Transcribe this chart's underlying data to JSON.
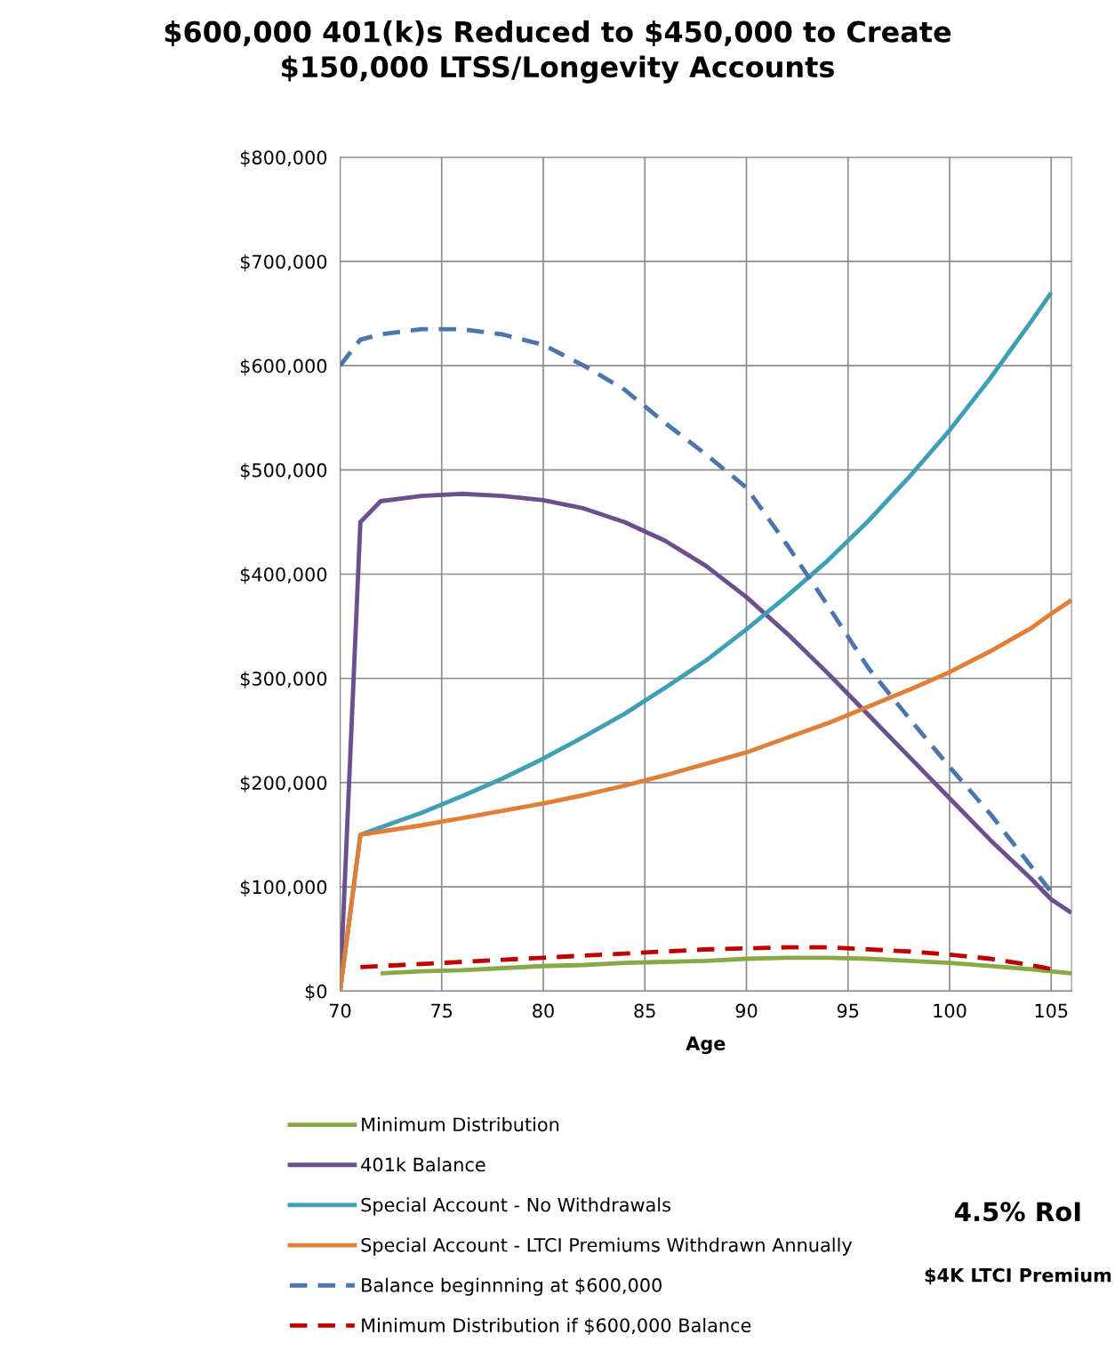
{
  "chart_data": {
    "type": "line",
    "title": "$600,000 401(k)s Reduced to $450,000 to Create\n$150,000 LTSS/Longevity Accounts",
    "xlabel": "Age",
    "x": [
      70,
      71,
      72,
      74,
      76,
      78,
      80,
      82,
      84,
      86,
      88,
      90,
      92,
      94,
      96,
      98,
      100,
      102,
      104,
      105,
      106
    ],
    "series": [
      {
        "name": "Minimum Distribution",
        "color": "#86aa45",
        "line_style": "solid",
        "values": [
          null,
          null,
          17000,
          19000,
          20000,
          22000,
          24000,
          25000,
          27000,
          28000,
          29000,
          31000,
          32000,
          32000,
          31000,
          29000,
          27000,
          24000,
          21000,
          19000,
          17000
        ]
      },
      {
        "name": "401k Balance",
        "color": "#6c4f8e",
        "line_style": "solid",
        "values": [
          0,
          450000,
          470000,
          475000,
          477000,
          475000,
          471000,
          463000,
          450000,
          432000,
          408000,
          378000,
          343000,
          305000,
          265000,
          225000,
          185000,
          145000,
          108000,
          88000,
          75000
        ]
      },
      {
        "name": "Special Account - No Withdrawals",
        "color": "#3f9fb5",
        "line_style": "solid",
        "values": [
          0,
          150000,
          157000,
          171000,
          187000,
          204000,
          223000,
          244000,
          266000,
          291000,
          317000,
          347000,
          379000,
          413000,
          451000,
          493000,
          538000,
          588000,
          642000,
          670000,
          null
        ]
      },
      {
        "name": "Special Account - LTCI Premiums Withdrawn Annually",
        "color": "#e07f37",
        "line_style": "solid",
        "values": [
          0,
          150000,
          153000,
          159000,
          166000,
          173000,
          180000,
          188000,
          197000,
          207000,
          218000,
          229000,
          243000,
          257000,
          273000,
          289000,
          306000,
          326000,
          348000,
          362000,
          375000
        ]
      },
      {
        "name": "Balance beginnning at $600,000",
        "color": "#4a76ab",
        "line_style": "dashed",
        "values": [
          600000,
          625000,
          630000,
          635000,
          635000,
          630000,
          620000,
          600000,
          577000,
          545000,
          515000,
          483000,
          428000,
          370000,
          310000,
          262000,
          215000,
          170000,
          120000,
          95000,
          null
        ]
      },
      {
        "name": "Minimum Distribution if $600,000 Balance",
        "color": "#c00000",
        "line_style": "dashed",
        "values": [
          null,
          23000,
          24000,
          26000,
          28000,
          30000,
          32000,
          34000,
          36000,
          38000,
          40000,
          41000,
          42000,
          42000,
          40000,
          38000,
          35000,
          31000,
          25000,
          21000,
          null
        ]
      }
    ],
    "xlim": [
      70,
      106
    ],
    "xticks": [
      70,
      75,
      80,
      85,
      90,
      95,
      100,
      105
    ],
    "ylim": [
      0,
      800000
    ],
    "yticks": [
      {
        "value": 0,
        "label": "$0"
      },
      {
        "value": 100000,
        "label": "$100,000"
      },
      {
        "value": 200000,
        "label": "$200,000"
      },
      {
        "value": 300000,
        "label": "$300,000"
      },
      {
        "value": 400000,
        "label": "$400,000"
      },
      {
        "value": 500000,
        "label": "$500,000"
      },
      {
        "value": 600000,
        "label": "$600,000"
      },
      {
        "value": 700000,
        "label": "$700,000"
      },
      {
        "value": 800000,
        "label": "$800,000"
      }
    ],
    "grid": true,
    "legend": "bottom",
    "marker": "none",
    "annotations": [
      "4.5% RoI",
      "$4K LTCI Premium"
    ]
  }
}
